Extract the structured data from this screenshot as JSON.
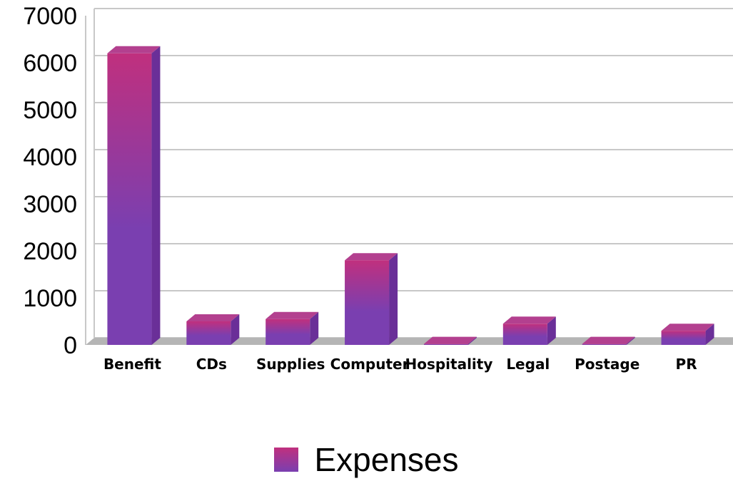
{
  "chart_data": {
    "type": "bar",
    "categories": [
      "Benefit",
      "CDs",
      "Supplies",
      "Computer",
      "Hospitality",
      "Legal",
      "Postage",
      "PR"
    ],
    "series": [
      {
        "name": "Expenses",
        "values": [
          6200,
          500,
          550,
          1800,
          20,
          450,
          20,
          300
        ]
      }
    ],
    "ylim": [
      0,
      7000
    ],
    "yticks": [
      "0",
      "1000",
      "2000",
      "3000",
      "4000",
      "5000",
      "6000",
      "7000"
    ],
    "grid": true,
    "legend_position": "bottom",
    "style_3d": true
  },
  "colors": {
    "bar_top": "#c0307e",
    "bar_bottom": "#7a3fb0",
    "bar_cap": "#b3408f",
    "bar_side": "#6a2f98",
    "grid": "#c8c8c8",
    "floor": "#b5b5b5"
  },
  "legend": {
    "label": "Expenses"
  }
}
